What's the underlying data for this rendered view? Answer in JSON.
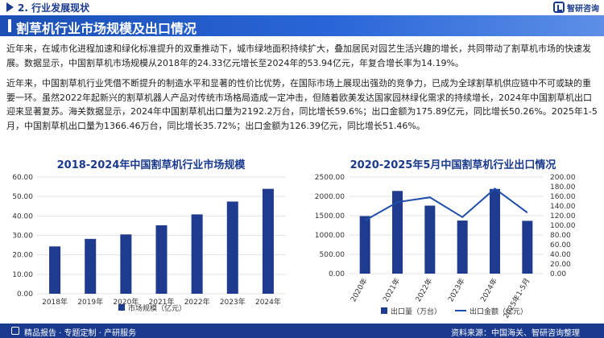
{
  "header": {
    "section_label": "2. 行业发展现状",
    "logo_text": "智研咨询"
  },
  "title": "割草机行业市场规模及出口情况",
  "paragraphs": [
    "近年来，在城市化进程加速和绿化标准提升的双重推动下，城市绿地面积持续扩大，叠加居民对园艺生活兴趣的增长，共同带动了割草机市场的快速发展。数据显示，中国割草机市场规模从2018年的24.33亿元增长至2024年的53.94亿元，年复合增长率为14.19%。",
    "近年来，中国割草机行业凭借不断提升的制造水平和显著的性价比优势，在国际市场上展现出强劲的竞争力，已成为全球割草机供应链中不可或缺的重要一环。虽然2022年起新兴的割草机器人产品对传统市场格局造成一定冲击，但随着欧美发达国家园林绿化需求的持续增长，2024年中国割草机出口迎来显著复苏。海关数据显示，2024年中国割草机出口量为2192.2万台，同比增长59.6%；出口金额为175.89亿元，同比增长50.26%。2025年1-5月，中国割草机出口量为1366.46万台，同比增长35.72%；出口金额为126.39亿元，同比增长51.46%。"
  ],
  "footer": {
    "left": "精品报告 · 专题定制 · 产研服务",
    "right": "资料来源：中国海关、智研咨询整理"
  },
  "colors": {
    "primary": "#1a3a8f",
    "bar": "#1f3b8f",
    "line": "#1f4ea8"
  },
  "chart_data": [
    {
      "type": "bar",
      "title": "2018-2024年中国割草机行业市场规模",
      "categories": [
        "2018年",
        "2019年",
        "2020年",
        "2021年",
        "2022年",
        "2023年",
        "2024年"
      ],
      "series": [
        {
          "name": "市场规模（亿元）",
          "values": [
            24.33,
            28.2,
            30.5,
            35.2,
            40.8,
            47.4,
            53.94
          ]
        }
      ],
      "ylim": [
        0,
        60
      ],
      "yticks": [
        "0.00",
        "10.00",
        "20.00",
        "30.00",
        "40.00",
        "50.00",
        "60.00"
      ],
      "legend": "bottom"
    },
    {
      "type": "bar",
      "title": "2020-2025年5月中国割草机行业出口情况",
      "categories": [
        "2020年",
        "2021年",
        "2022年",
        "2023年",
        "2024年",
        "2025年1-5月"
      ],
      "series": [
        {
          "name": "出口量（万台）",
          "type": "bar",
          "axis": "left",
          "values": [
            1490,
            2140,
            1760,
            1374,
            2192.2,
            1366.46
          ]
        },
        {
          "name": "出口金额（亿元）",
          "type": "line",
          "axis": "right",
          "values": [
            110,
            148,
            158,
            117,
            175.89,
            126.39
          ]
        }
      ],
      "ylim_left": [
        0,
        2500
      ],
      "ylim_right": [
        0,
        200
      ],
      "yticks_left": [
        "0.00",
        "500.00",
        "1000.00",
        "1500.00",
        "2000.00",
        "2500.00"
      ],
      "yticks_right": [
        "0.00",
        "20.00",
        "40.00",
        "60.00",
        "80.00",
        "100.00",
        "120.00",
        "140.00",
        "160.00",
        "180.00",
        "200.00"
      ],
      "legend": "bottom"
    }
  ]
}
